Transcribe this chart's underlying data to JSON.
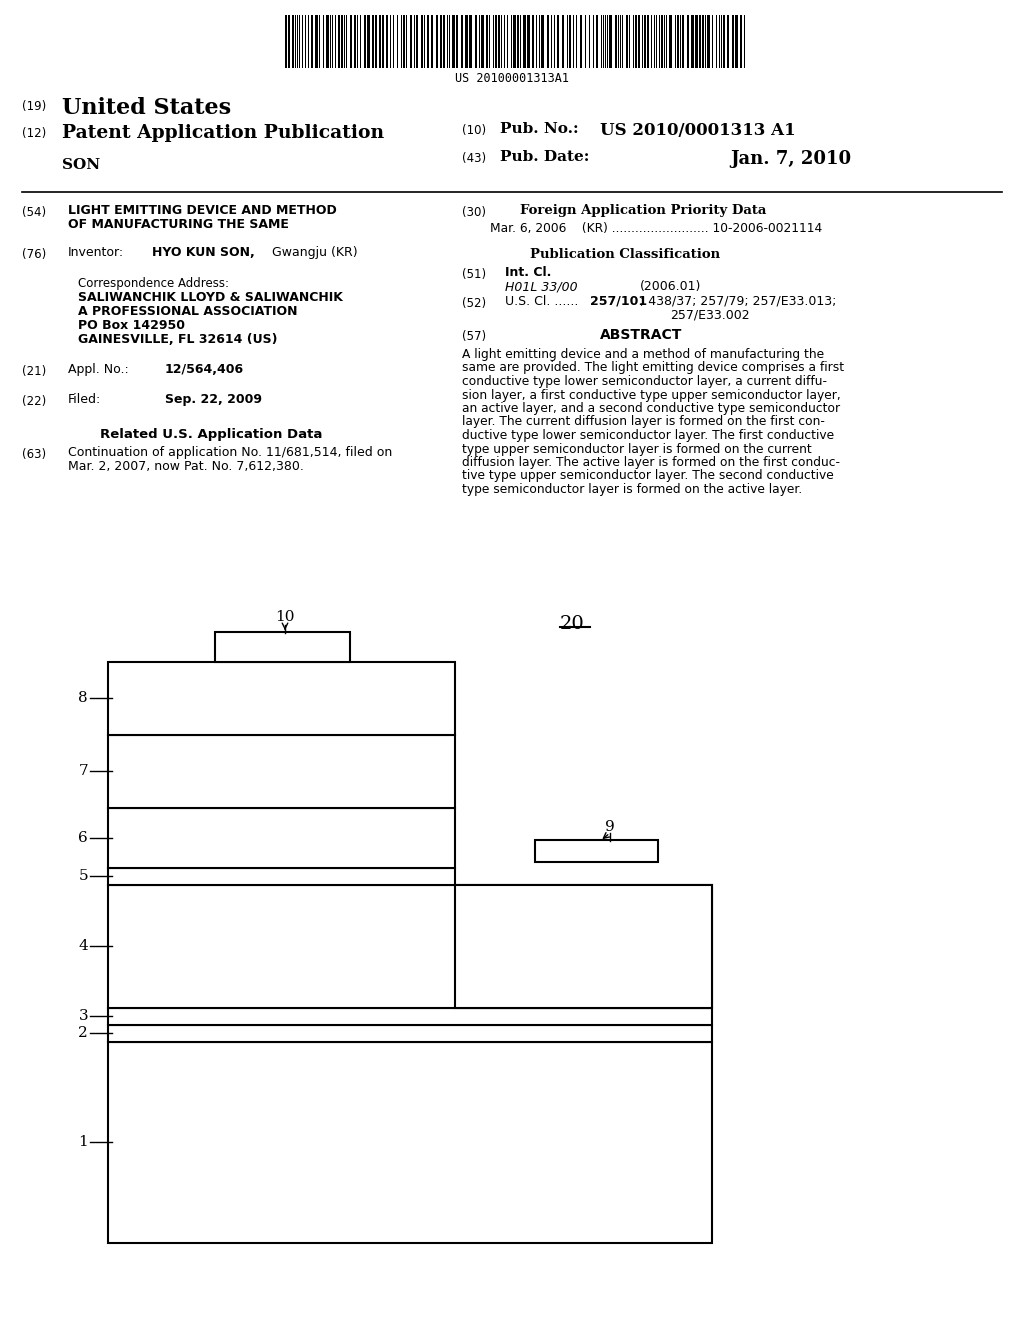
{
  "background_color": "#ffffff",
  "barcode_text": "US 20100001313A1",
  "fig_label_20": "20",
  "fig_label_10": "10",
  "fig_label_9": "9",
  "layer_labels": [
    "8",
    "7",
    "6",
    "5",
    "4",
    "3",
    "2",
    "1"
  ]
}
